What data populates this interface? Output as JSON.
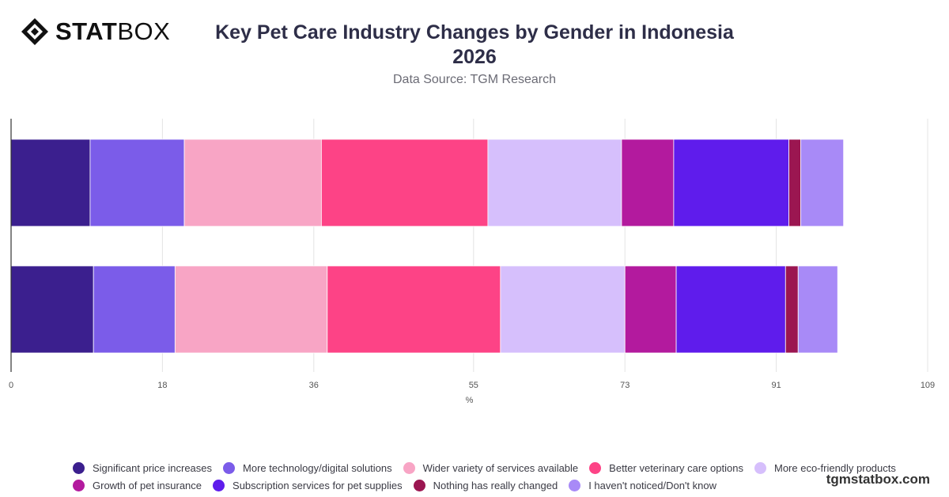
{
  "brand": {
    "logo_bold": "STAT",
    "logo_light": "BOX",
    "watermark": "tgmstatbox.com"
  },
  "header": {
    "title_line1": "Key Pet Care Industry Changes by Gender in Indonesia",
    "title_line2": "2026",
    "subtitle": "Data Source: TGM Research"
  },
  "chart_data": {
    "type": "bar",
    "orientation": "horizontal",
    "stacked": true,
    "categories": [
      "",
      ""
    ],
    "xlabel": "%",
    "xlim": [
      0,
      109
    ],
    "xticks": [
      0,
      18,
      36,
      55,
      73,
      91,
      109
    ],
    "grid": true,
    "legend_position": "bottom",
    "series": [
      {
        "name": "Significant price increases",
        "color": "#3b1f8e",
        "values": [
          9.4,
          9.8
        ]
      },
      {
        "name": "More technology/digital solutions",
        "color": "#7b5ce9",
        "values": [
          11.2,
          9.7
        ]
      },
      {
        "name": "Wider variety of services available",
        "color": "#f8a5c5",
        "values": [
          16.3,
          18.1
        ]
      },
      {
        "name": "Better veterinary care options",
        "color": "#fd4386",
        "values": [
          19.8,
          20.6
        ]
      },
      {
        "name": "More eco-friendly products",
        "color": "#d6bffc",
        "values": [
          15.9,
          14.8
        ]
      },
      {
        "name": "Growth of pet insurance",
        "color": "#b31a9e",
        "values": [
          6.2,
          6.1
        ]
      },
      {
        "name": "Subscription services for pet supplies",
        "color": "#5f1cec",
        "values": [
          13.7,
          13.0
        ]
      },
      {
        "name": "Nothing has really changed",
        "color": "#9b1651",
        "values": [
          1.4,
          1.5
        ]
      },
      {
        "name": "I haven't noticed/Don't know",
        "color": "#a88af7",
        "values": [
          5.1,
          4.7
        ]
      }
    ]
  }
}
